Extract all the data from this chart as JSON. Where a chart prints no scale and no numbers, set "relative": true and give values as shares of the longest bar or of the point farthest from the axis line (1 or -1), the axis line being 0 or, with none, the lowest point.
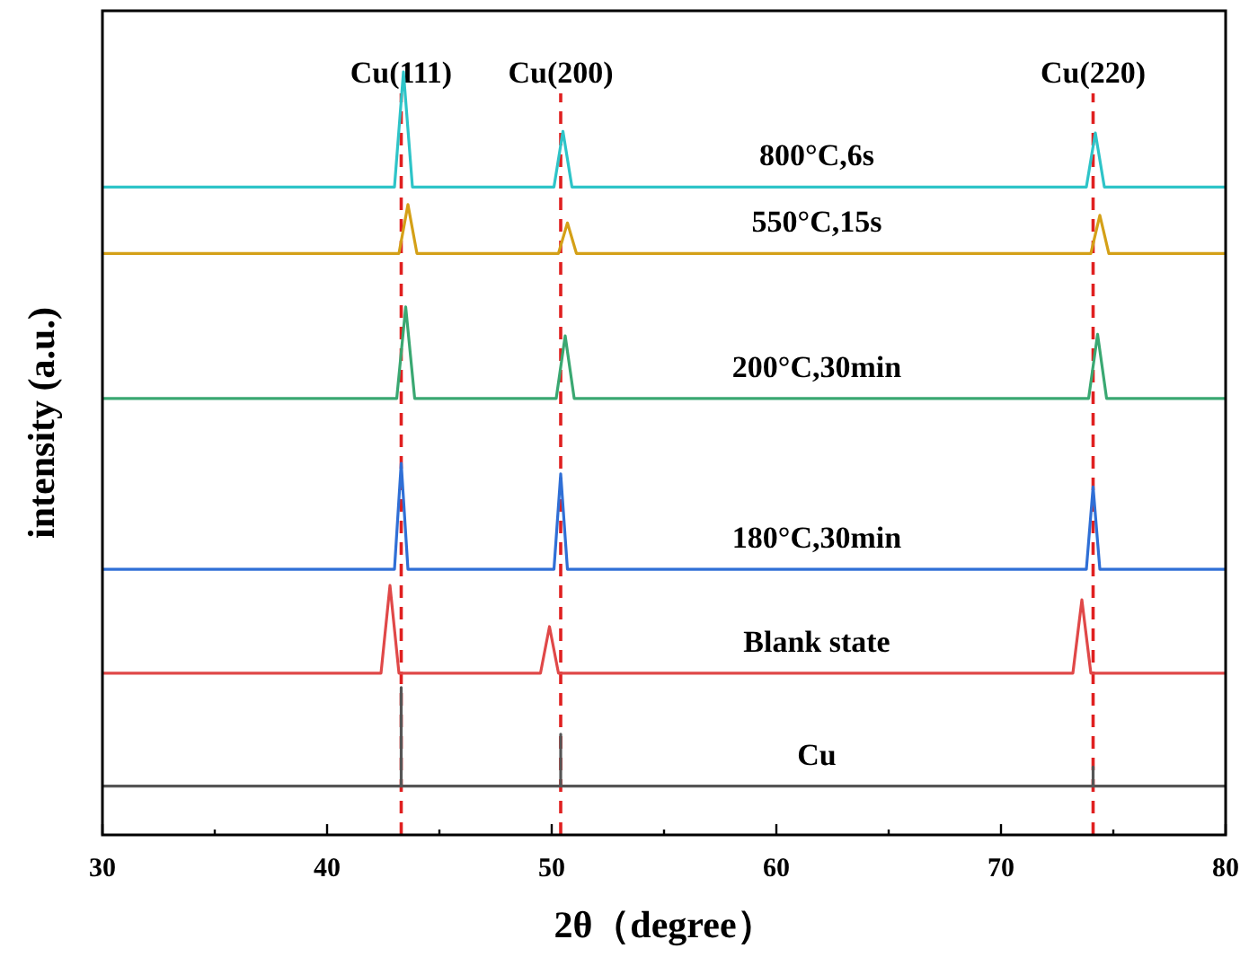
{
  "chart_data": {
    "type": "line",
    "xlabel": "2θ（degree）",
    "ylabel": "intensity (a.u.)",
    "relative": true,
    "marker": "none",
    "line_style": "solid",
    "tick_labels": "x",
    "xlim": [
      30,
      80
    ],
    "xticks": [
      30,
      {
        "value": 35,
        "label": null
      },
      40,
      {
        "value": 45,
        "label": null
      },
      50,
      {
        "value": 55,
        "label": null
      },
      60,
      {
        "value": 65,
        "label": null
      },
      70,
      {
        "value": 75,
        "label": null
      },
      80
    ],
    "series": [
      {
        "name": "800°C,6s",
        "color": "#2ec4c8",
        "x": [
          30,
          43.0,
          43.4,
          43.8,
          50.1,
          50.5,
          50.9,
          73.8,
          74.2,
          74.6,
          80
        ],
        "values": [
          0.849,
          0.849,
          1,
          0.849,
          0.849,
          0.922,
          0.849,
          0.849,
          0.92,
          0.849,
          0.849
        ]
      },
      {
        "name": "550°C,15s",
        "color": "#d4a017",
        "x": [
          30,
          43.2,
          43.6,
          44.0,
          50.3,
          50.7,
          51.1,
          74.0,
          74.4,
          74.8,
          80
        ],
        "values": [
          0.762,
          0.762,
          0.826,
          0.762,
          0.762,
          0.802,
          0.762,
          0.762,
          0.812,
          0.762,
          0.762
        ]
      },
      {
        "name": "200°C,30min",
        "color": "#3aa872",
        "x": [
          30,
          43.1,
          43.5,
          43.9,
          50.2,
          50.6,
          51.0,
          73.9,
          74.3,
          74.7,
          80
        ],
        "values": [
          0.572,
          0.572,
          0.692,
          0.572,
          0.572,
          0.654,
          0.572,
          0.572,
          0.656,
          0.572,
          0.572
        ]
      },
      {
        "name": "180°C,30min",
        "color": "#2f6fd6",
        "x": [
          30,
          43.0,
          43.3,
          43.6,
          50.1,
          50.4,
          50.7,
          73.8,
          74.1,
          74.4,
          80
        ],
        "values": [
          0.348,
          0.348,
          0.487,
          0.348,
          0.348,
          0.473,
          0.348,
          0.348,
          0.456,
          0.348,
          0.348
        ]
      },
      {
        "name": "Blank state",
        "color": "#e04848",
        "x": [
          30,
          42.4,
          42.8,
          43.2,
          49.5,
          49.9,
          50.3,
          73.2,
          73.6,
          74.0,
          80
        ],
        "values": [
          0.212,
          0.212,
          0.327,
          0.212,
          0.212,
          0.273,
          0.212,
          0.212,
          0.308,
          0.212,
          0.212
        ]
      },
      {
        "name": "Cu",
        "color": "#555555",
        "x": [
          30,
          43.3,
          43.3,
          43.3,
          50.4,
          50.4,
          50.4,
          74.1,
          74.1,
          74.1,
          80
        ],
        "values": [
          0.064,
          0.064,
          0.193,
          0.064,
          0.064,
          0.132,
          0.064,
          0.064,
          0.089,
          0.064,
          0.064
        ]
      }
    ],
    "ref_lines": [
      {
        "axis": "x",
        "value": 43.3,
        "label": "Cu(111)",
        "color": "#e02020",
        "line_style": "dashed"
      },
      {
        "axis": "x",
        "value": 50.4,
        "label": "Cu(200)",
        "color": "#e02020",
        "line_style": "dashed"
      },
      {
        "axis": "x",
        "value": 74.1,
        "label": "Cu(220)",
        "color": "#e02020",
        "line_style": "dashed"
      }
    ]
  }
}
